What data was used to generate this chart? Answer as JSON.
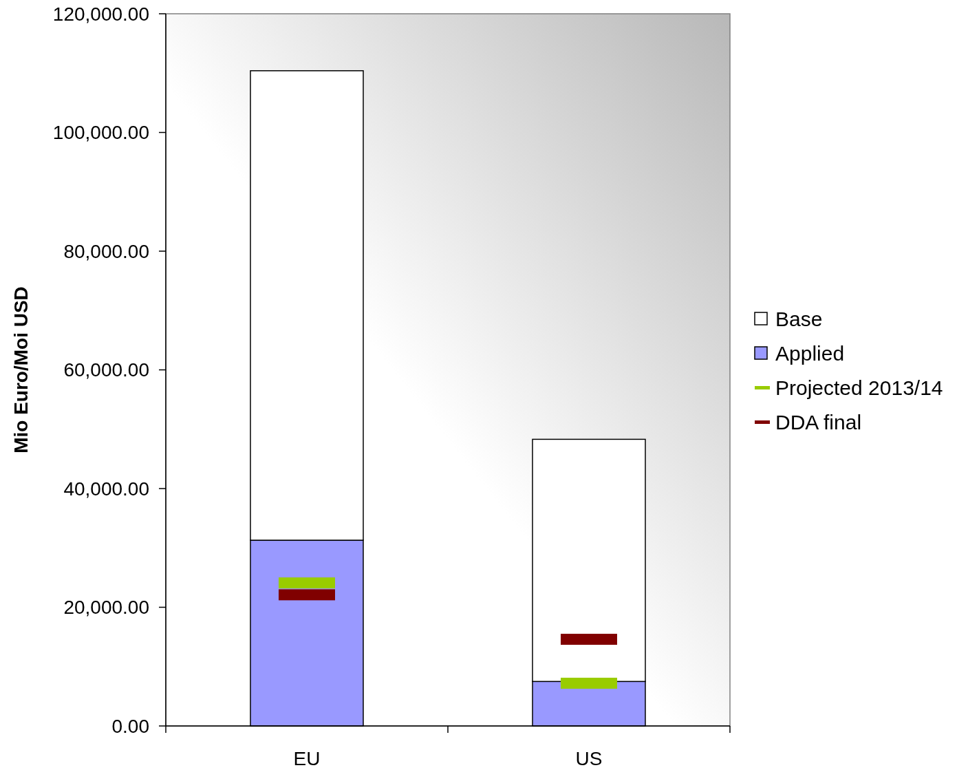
{
  "chart_data": {
    "type": "bar",
    "stacked": true,
    "ylabel": "Mio Euro/Moi USD",
    "categories": [
      "EU",
      "US"
    ],
    "series": [
      {
        "name": "Applied",
        "color": "#9999ff",
        "values": [
          31300,
          7500
        ]
      },
      {
        "name": "Base",
        "color": "#ffffff",
        "values": [
          79100,
          40800
        ]
      },
      {
        "name": "Projected 2013/14",
        "type": "scatter",
        "color": "#99cc00",
        "values": [
          24100,
          7200
        ]
      },
      {
        "name": "DDA final",
        "type": "scatter",
        "color": "#800000",
        "values": [
          22100,
          14600
        ]
      }
    ],
    "ylim": [
      0,
      120000
    ],
    "yticks": [
      {
        "value": 0,
        "label": "0.00"
      },
      {
        "value": 20000,
        "label": "20,000.00"
      },
      {
        "value": 40000,
        "label": "40,000.00"
      },
      {
        "value": 60000,
        "label": "60,000.00"
      },
      {
        "value": 80000,
        "label": "80,000.00"
      },
      {
        "value": 100000,
        "label": "100,000.00"
      },
      {
        "value": 120000,
        "label": "120,000.00"
      }
    ],
    "grid": false,
    "legend": "right"
  }
}
